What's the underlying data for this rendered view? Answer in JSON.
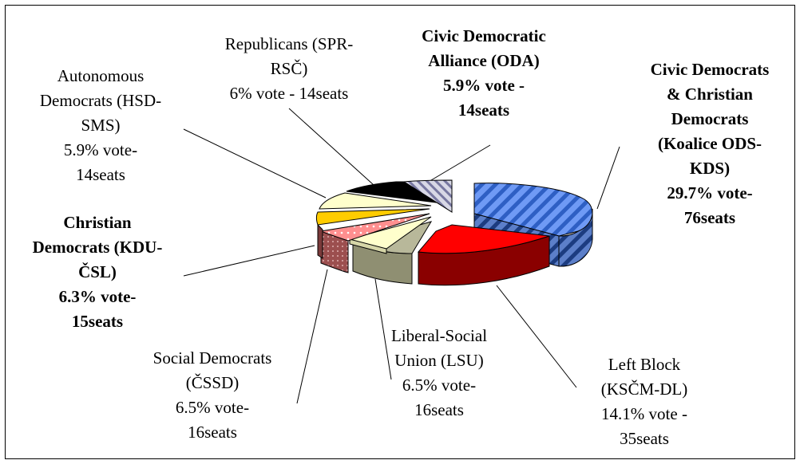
{
  "chart_data": {
    "type": "pie",
    "title": "",
    "slices": [
      {
        "key": "ods_kds",
        "label_lines": [
          "Civic Democrats",
          "& Christian",
          "Democrats",
          "(Koalice ODS-",
          "KDS)",
          "29.7% vote-",
          "76seats"
        ],
        "value": 29.7,
        "seats": 76,
        "bold": true,
        "color": "#4f7fe0"
      },
      {
        "key": "kscm_dl",
        "label_lines": [
          "Left Block",
          "(KSČM-DL)",
          "14.1% vote -",
          "35seats"
        ],
        "value": 14.1,
        "seats": 35,
        "bold": false,
        "color": "#ff0000"
      },
      {
        "key": "lsu",
        "label_lines": [
          "Liberal-Social",
          "Union (LSU)",
          "6.5% vote-",
          "16seats"
        ],
        "value": 6.5,
        "seats": 16,
        "bold": false,
        "color": "#a9a98a"
      },
      {
        "key": "cssd",
        "label_lines": [
          "Social Democrats",
          "(ČSSD)",
          "6.5% vote-",
          "16seats"
        ],
        "value": 6.5,
        "seats": 16,
        "bold": false,
        "color": "#ffffcc"
      },
      {
        "key": "kdu_csl",
        "label_lines": [
          "Christian",
          "Democrats (KDU-",
          "ČSL)",
          "6.3% vote-",
          "15seats"
        ],
        "value": 6.3,
        "seats": 15,
        "bold": true,
        "color": "#ff9999"
      },
      {
        "key": "x_small",
        "label_lines": [],
        "value": 1.2,
        "seats": null,
        "bold": false,
        "color": "#b36b6b"
      },
      {
        "key": "y_small",
        "label_lines": [],
        "value": 1.2,
        "seats": null,
        "bold": false,
        "color": "#ffcc00"
      },
      {
        "key": "hsd_sms",
        "label_lines": [
          "Autonomous",
          "Democrats (HSD-",
          "SMS)",
          "5.9% vote-",
          "14seats"
        ],
        "value": 5.9,
        "seats": 14,
        "bold": false,
        "color": "#ffffcc"
      },
      {
        "key": "spr_rsc",
        "label_lines": [
          "Republicans (SPR-",
          "RSČ)",
          "6% vote - 14seats"
        ],
        "value": 6.0,
        "seats": 14,
        "bold": false,
        "color": "#000000"
      },
      {
        "key": "oda",
        "label_lines": [
          "Civic Democratic",
          "Alliance (ODA)",
          "5.9% vote -",
          "14seats"
        ],
        "value": 5.9,
        "seats": 14,
        "bold": true,
        "color": "#9999bb"
      }
    ],
    "legend": "none",
    "style": "exploded-3d"
  }
}
